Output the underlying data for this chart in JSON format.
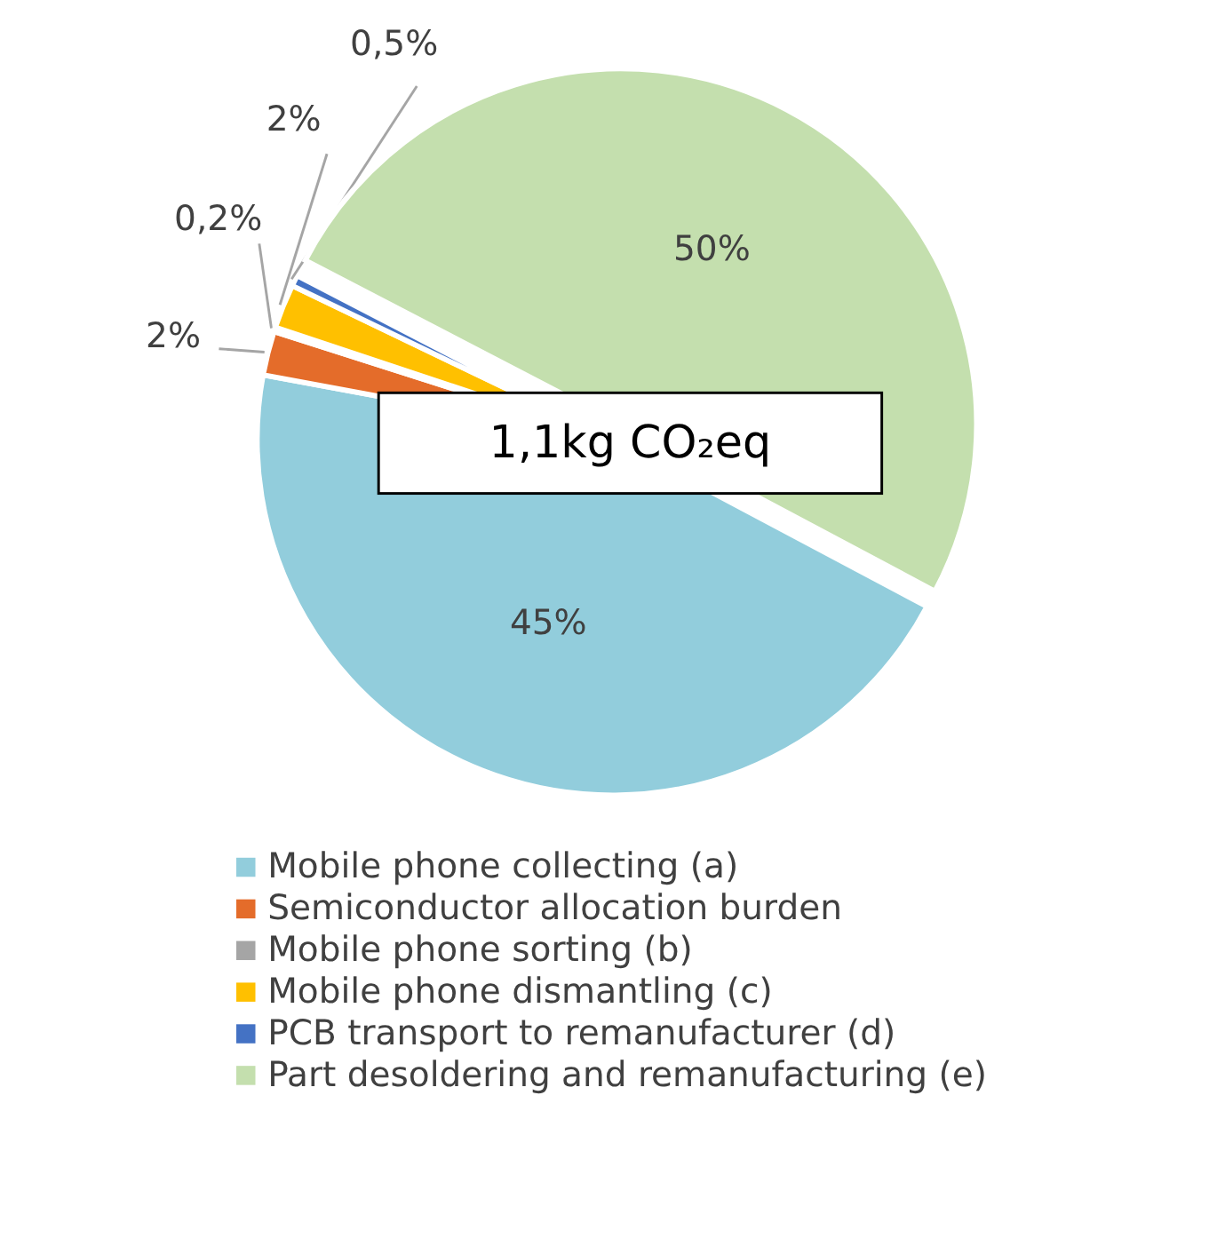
{
  "chart_data": {
    "type": "pie",
    "categories": [
      "Mobile phone collecting (a)",
      "Semiconductor allocation burden",
      "Mobile phone sorting (b)",
      "Mobile phone dismantling (c)",
      "PCB transport to remanufacturer (d)",
      "Part desoldering and remanufacturing (e)"
    ],
    "values": [
      45,
      2,
      0.2,
      2,
      0.5,
      50
    ],
    "value_labels": [
      "45%",
      "2%",
      "0,2%",
      "2%",
      "0,5%",
      "50%"
    ],
    "colors": [
      "#92cddc",
      "#e46c2a",
      "#a5a5a5",
      "#ffc000",
      "#4472c4",
      "#c4dfae"
    ],
    "annotations": [
      "1,1kg CO₂eq"
    ],
    "legend": "bottom"
  }
}
